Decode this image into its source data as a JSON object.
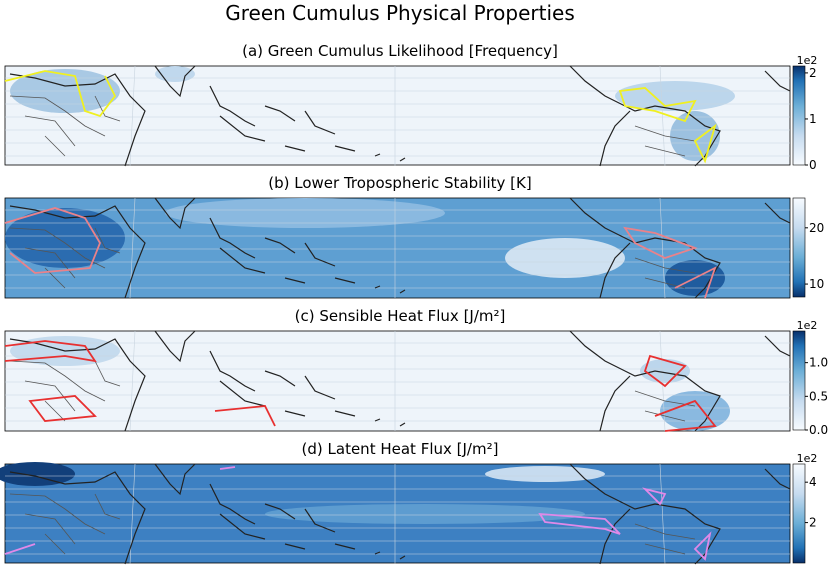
{
  "title": "Green Cumulus Physical Properties",
  "panels": [
    {
      "title": "(a) Green Cumulus Likelihood [Frequency]",
      "colorbar": {
        "lim": [
          0,
          2.15
        ],
        "ticks": [
          0,
          1,
          2
        ],
        "scale_label": "1e2",
        "cmap_reversed": false
      }
    },
    {
      "title": "(b) Lower Tropospheric Stability [K]",
      "colorbar": {
        "lim": [
          7.7,
          25.3
        ],
        "ticks": [
          10,
          20
        ],
        "cmap_reversed": true
      }
    },
    {
      "title": "(c) Sensible Heat Flux [J/m²]",
      "colorbar": {
        "lim": [
          0,
          1.47
        ],
        "ticks": [
          {
            "value": 0,
            "label": "0.0"
          },
          0.5,
          {
            "value": 1,
            "label": "1.0"
          }
        ],
        "scale_label": "1e2",
        "cmap_reversed": false
      }
    },
    {
      "title": "(d) Latent Heat Flux [J/m²]",
      "colorbar": {
        "lim": [
          0,
          4.9
        ],
        "ticks": [
          2,
          4
        ],
        "scale_label": "1e2",
        "cmap_reversed": true
      }
    }
  ]
}
